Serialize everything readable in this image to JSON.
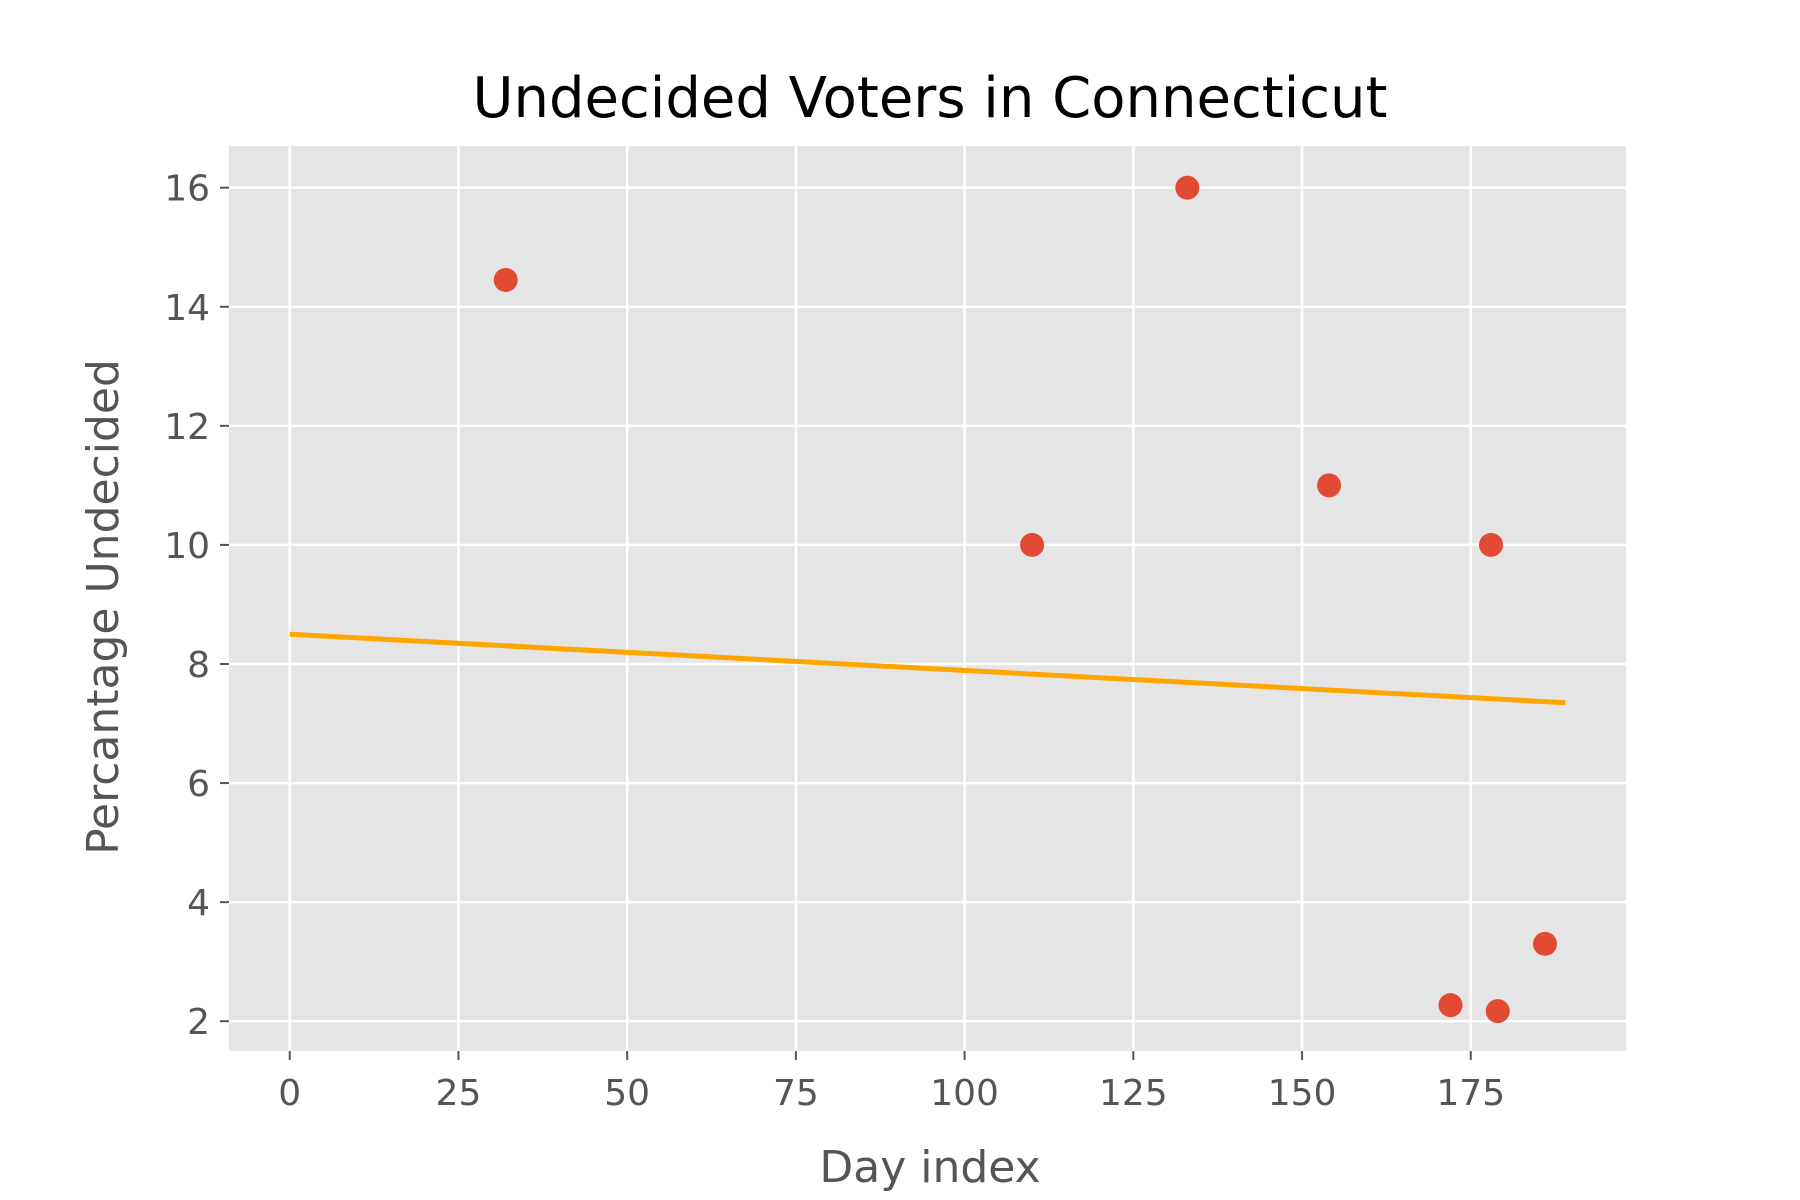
{
  "chart_data": {
    "type": "scatter",
    "title": "Undecided Voters in Connecticut",
    "xlabel": "Day index",
    "ylabel": "Percantage Undecided",
    "xlim": [
      -9,
      198
    ],
    "ylim": [
      1.5,
      16.7
    ],
    "xticks": [
      0,
      25,
      50,
      75,
      100,
      125,
      150,
      175
    ],
    "yticks": [
      2,
      4,
      6,
      8,
      10,
      12,
      14,
      16
    ],
    "grid": true,
    "legend": "none",
    "series": [
      {
        "kind": "scatter",
        "x": [
          32,
          110,
          133,
          154,
          172,
          178,
          179,
          186
        ],
        "y": [
          14.45,
          10.0,
          16.0,
          11.0,
          2.27,
          10.0,
          2.17,
          3.3
        ]
      },
      {
        "kind": "line",
        "x": [
          0,
          189
        ],
        "y": [
          8.5,
          7.35
        ]
      }
    ],
    "colors": {
      "background": "#e5e5e5",
      "grid": "#ffffff",
      "points": "#e24a33",
      "trend": "#ffa500",
      "tick_label": "#555555",
      "title": "#000000"
    }
  }
}
